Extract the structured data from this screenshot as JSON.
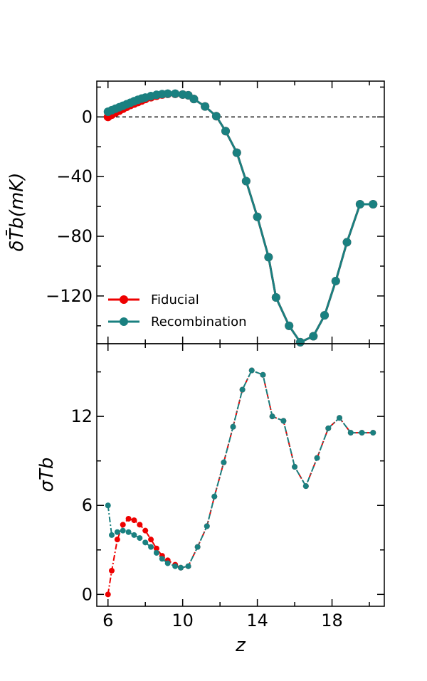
{
  "chart_data": [
    {
      "type": "line",
      "panel": "top",
      "title": "",
      "xlabel": "",
      "ylabel": "δT̄b(mK)",
      "xlim": [
        5.4,
        20.8
      ],
      "ylim": [
        -152,
        24
      ],
      "xticks": [
        6,
        10,
        14,
        18
      ],
      "yticks": [
        0,
        -40,
        -80,
        -120
      ],
      "ytick_labels": [
        "0",
        "−40",
        "−80",
        "−120"
      ],
      "hline": 0,
      "legend": {
        "placement": "lower-left",
        "entries": [
          "Fiducial",
          "Recombination"
        ]
      },
      "series": [
        {
          "name": "Fiducial",
          "color": "#ee0000",
          "x": [
            6.0,
            6.2,
            6.4,
            6.6,
            6.8,
            7.0,
            7.2,
            7.4,
            7.6,
            7.8,
            8.0,
            8.3,
            8.6,
            8.9,
            9.2,
            9.6,
            10.0,
            10.3,
            10.6,
            11.2,
            11.8,
            12.3,
            12.9,
            13.4,
            14.0,
            14.6,
            15.0,
            15.7,
            16.3,
            17.0,
            17.6,
            18.2,
            18.8,
            19.5,
            20.2
          ],
          "y": [
            0.0,
            1.5,
            3.0,
            4.2,
            5.5,
            6.8,
            8.0,
            9.0,
            10.0,
            11.0,
            12.0,
            13.2,
            14.2,
            15.0,
            15.5,
            15.5,
            15.0,
            14.5,
            12.0,
            7.0,
            0.5,
            -9.5,
            -24.0,
            -43.0,
            -67.0,
            -94.0,
            -121.0,
            -140.0,
            -151.0,
            -147.0,
            -133.0,
            -110.0,
            -84.0,
            -58.5,
            -58.5
          ]
        },
        {
          "name": "Recombination",
          "color": "#1a8080",
          "x": [
            6.0,
            6.2,
            6.4,
            6.6,
            6.8,
            7.0,
            7.2,
            7.4,
            7.6,
            7.8,
            8.0,
            8.3,
            8.6,
            8.9,
            9.2,
            9.6,
            10.0,
            10.3,
            10.6,
            11.2,
            11.8,
            12.3,
            12.9,
            13.4,
            14.0,
            14.6,
            15.0,
            15.7,
            16.3,
            17.0,
            17.6,
            18.2,
            18.8,
            19.5,
            20.2
          ],
          "y": [
            3.5,
            4.5,
            5.5,
            6.5,
            7.5,
            8.5,
            9.5,
            10.5,
            11.5,
            12.3,
            13.0,
            14.0,
            14.8,
            15.3,
            15.6,
            15.6,
            15.0,
            14.5,
            12.0,
            7.0,
            0.5,
            -9.5,
            -24.0,
            -43.0,
            -67.0,
            -94.0,
            -121.0,
            -140.0,
            -151.0,
            -147.0,
            -133.0,
            -110.0,
            -84.0,
            -58.5,
            -58.5
          ]
        }
      ]
    },
    {
      "type": "line",
      "panel": "bottom",
      "title": "",
      "xlabel": "z",
      "ylabel": "σTb",
      "xlim": [
        5.4,
        20.8
      ],
      "ylim": [
        -0.8,
        16.9
      ],
      "xticks": [
        6,
        10,
        14,
        18
      ],
      "yticks": [
        0,
        6,
        12
      ],
      "series": [
        {
          "name": "Fiducial",
          "color": "#ee0000",
          "x": [
            6.0,
            6.2,
            6.5,
            6.8,
            7.1,
            7.4,
            7.7,
            8.0,
            8.3,
            8.6,
            8.9,
            9.2,
            9.6,
            9.9,
            10.3,
            10.8,
            11.3,
            11.7,
            12.2,
            12.7,
            13.2,
            13.7,
            14.3,
            14.8,
            15.4,
            16.0,
            16.6,
            17.2,
            17.8,
            18.4,
            19.0,
            19.6,
            20.2
          ],
          "y": [
            0.0,
            1.6,
            3.7,
            4.7,
            5.1,
            5.0,
            4.7,
            4.3,
            3.7,
            3.1,
            2.6,
            2.3,
            2.0,
            1.8,
            1.9,
            3.2,
            4.6,
            6.6,
            8.9,
            11.3,
            13.8,
            15.1,
            14.8,
            12.0,
            11.7,
            8.6,
            7.3,
            9.2,
            11.2,
            11.9,
            10.9,
            10.9,
            10.9
          ]
        },
        {
          "name": "Recombination",
          "color": "#1a8080",
          "x": [
            6.0,
            6.2,
            6.5,
            6.8,
            7.1,
            7.4,
            7.7,
            8.0,
            8.3,
            8.6,
            8.9,
            9.2,
            9.6,
            9.9,
            10.3,
            10.8,
            11.3,
            11.7,
            12.2,
            12.7,
            13.2,
            13.7,
            14.3,
            14.8,
            15.4,
            16.0,
            16.6,
            17.2,
            17.8,
            18.4,
            19.0,
            19.6,
            20.2
          ],
          "y": [
            6.0,
            4.0,
            4.2,
            4.3,
            4.2,
            4.0,
            3.8,
            3.5,
            3.2,
            2.8,
            2.4,
            2.1,
            1.9,
            1.8,
            1.9,
            3.2,
            4.6,
            6.6,
            8.9,
            11.3,
            13.8,
            15.1,
            14.8,
            12.0,
            11.7,
            8.6,
            7.3,
            9.2,
            11.2,
            11.9,
            10.9,
            10.9,
            10.9
          ]
        }
      ]
    }
  ]
}
